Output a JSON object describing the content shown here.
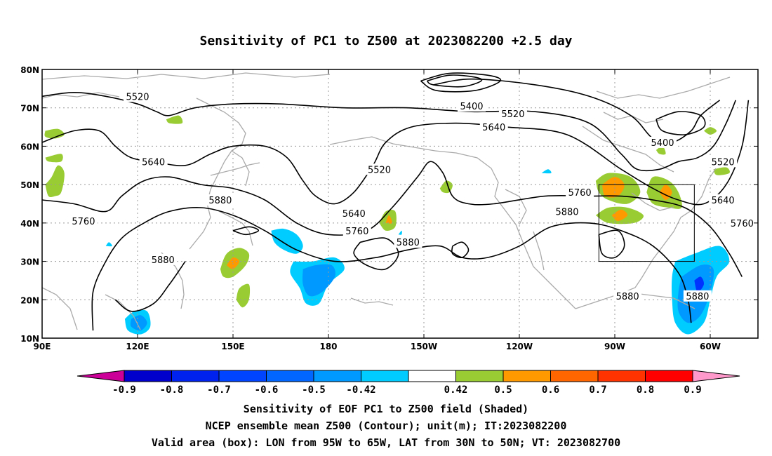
{
  "title": "Sensitivity of PC1 to Z500 at 2023082200 +2.5 day",
  "lat_ticks": [
    {
      "v": 80,
      "label": "80N"
    },
    {
      "v": 70,
      "label": "70N"
    },
    {
      "v": 60,
      "label": "60N"
    },
    {
      "v": 50,
      "label": "50N"
    },
    {
      "v": 40,
      "label": "40N"
    },
    {
      "v": 30,
      "label": "30N"
    },
    {
      "v": 20,
      "label": "20N"
    },
    {
      "v": 10,
      "label": "10N"
    }
  ],
  "lon_ticks": [
    {
      "v": 90,
      "label": "90E"
    },
    {
      "v": 120,
      "label": "120E"
    },
    {
      "v": 150,
      "label": "150E"
    },
    {
      "v": 180,
      "label": "180"
    },
    {
      "v": 210,
      "label": "150W"
    },
    {
      "v": 240,
      "label": "120W"
    },
    {
      "v": 270,
      "label": "90W"
    },
    {
      "v": 300,
      "label": "60W"
    }
  ],
  "map_extent": {
    "lon_min": 90,
    "lon_max": 315,
    "lat_min": 10,
    "lat_max": 80
  },
  "grid": true,
  "contours": [
    {
      "label": "5400",
      "points": [
        [
          213,
          76
        ],
        [
          225,
          77.5
        ],
        [
          245,
          76
        ],
        [
          262,
          73
        ],
        [
          275,
          68
        ],
        [
          282,
          62
        ],
        [
          288,
          61
        ],
        [
          294,
          64
        ],
        [
          297,
          68
        ],
        [
          303,
          72
        ]
      ]
    },
    {
      "label": "5520",
      "points": [
        [
          90,
          73
        ],
        [
          100,
          74
        ],
        [
          110,
          73
        ],
        [
          120,
          71
        ],
        [
          126,
          69
        ],
        [
          130,
          68
        ],
        [
          138,
          70
        ],
        [
          150,
          71
        ],
        [
          165,
          71
        ],
        [
          185,
          70
        ],
        [
          205,
          70
        ],
        [
          225,
          69
        ],
        [
          245,
          69
        ],
        [
          262,
          66
        ],
        [
          272,
          58
        ],
        [
          277,
          54
        ],
        [
          284,
          54
        ],
        [
          290,
          56
        ],
        [
          296,
          57
        ],
        [
          301,
          60
        ],
        [
          305,
          66
        ],
        [
          308,
          72
        ]
      ]
    },
    {
      "label": "5640",
      "points": [
        [
          90,
          61
        ],
        [
          100,
          64
        ],
        [
          108,
          64
        ],
        [
          113,
          60
        ],
        [
          118,
          57
        ],
        [
          125,
          56
        ],
        [
          135,
          55
        ],
        [
          143,
          58
        ],
        [
          150,
          60
        ],
        [
          160,
          60
        ],
        [
          167,
          57
        ],
        [
          172,
          51
        ],
        [
          176,
          47
        ],
        [
          182,
          45
        ],
        [
          188,
          48
        ],
        [
          194,
          55
        ],
        [
          198,
          61
        ],
        [
          206,
          65
        ],
        [
          220,
          66
        ],
        [
          236,
          65
        ],
        [
          255,
          63
        ],
        [
          272,
          54
        ],
        [
          282,
          49
        ],
        [
          290,
          46
        ],
        [
          298,
          45
        ],
        [
          305,
          50
        ],
        [
          310,
          60
        ],
        [
          312,
          72
        ]
      ]
    },
    {
      "label": "5760",
      "points": [
        [
          90,
          46
        ],
        [
          100,
          45
        ],
        [
          110,
          43
        ],
        [
          115,
          47
        ],
        [
          122,
          51
        ],
        [
          130,
          52
        ],
        [
          140,
          50
        ],
        [
          150,
          49
        ],
        [
          160,
          46
        ],
        [
          170,
          40
        ],
        [
          180,
          37
        ],
        [
          192,
          38
        ],
        [
          200,
          44
        ],
        [
          208,
          52
        ],
        [
          212,
          56
        ],
        [
          216,
          53
        ],
        [
          219,
          47
        ],
        [
          224,
          45
        ],
        [
          232,
          45
        ],
        [
          248,
          47
        ],
        [
          262,
          47
        ],
        [
          272,
          47
        ],
        [
          282,
          46
        ],
        [
          292,
          44
        ],
        [
          300,
          39
        ],
        [
          306,
          32
        ],
        [
          310,
          26
        ]
      ]
    },
    {
      "label": "5880",
      "points": [
        [
          106,
          12
        ],
        [
          106,
          22
        ],
        [
          110,
          30
        ],
        [
          115,
          36
        ],
        [
          122,
          40
        ],
        [
          130,
          43
        ],
        [
          140,
          44
        ],
        [
          150,
          42
        ],
        [
          160,
          38
        ],
        [
          170,
          33
        ],
        [
          182,
          30
        ],
        [
          195,
          31
        ],
        [
          205,
          33
        ],
        [
          215,
          34
        ],
        [
          222,
          31
        ],
        [
          230,
          31
        ],
        [
          240,
          34
        ],
        [
          250,
          39
        ],
        [
          262,
          40
        ],
        [
          272,
          38
        ],
        [
          282,
          34
        ],
        [
          290,
          27
        ],
        [
          293,
          20
        ],
        [
          294,
          14
        ]
      ]
    },
    {
      "label": "5880",
      "points": [
        [
          190,
          35
        ],
        [
          198,
          36
        ],
        [
          202,
          32
        ],
        [
          198,
          28
        ],
        [
          192,
          29
        ],
        [
          188,
          32
        ],
        [
          190,
          35
        ]
      ]
    },
    {
      "label": "5880",
      "points": [
        [
          135,
          30
        ],
        [
          130,
          24
        ],
        [
          125,
          19
        ],
        [
          118,
          17
        ],
        [
          113,
          20
        ]
      ]
    }
  ],
  "contour_labels": [
    {
      "text": "5520",
      "lon": 120,
      "lat": 73
    },
    {
      "text": "5400",
      "lon": 225,
      "lat": 70.5
    },
    {
      "text": "5520",
      "lon": 238,
      "lat": 68.5
    },
    {
      "text": "5640",
      "lon": 232,
      "lat": 65
    },
    {
      "text": "5400",
      "lon": 285,
      "lat": 61
    },
    {
      "text": "5520",
      "lon": 304,
      "lat": 56
    },
    {
      "text": "5640",
      "lon": 125,
      "lat": 56
    },
    {
      "text": "5520",
      "lon": 196,
      "lat": 54
    },
    {
      "text": "5760",
      "lon": 259,
      "lat": 48
    },
    {
      "text": "5880",
      "lon": 255,
      "lat": 43
    },
    {
      "text": "5640",
      "lon": 304,
      "lat": 46
    },
    {
      "text": "5880",
      "lon": 146,
      "lat": 46
    },
    {
      "text": "5640",
      "lon": 188,
      "lat": 42.5
    },
    {
      "text": "5760",
      "lon": 310,
      "lat": 40
    },
    {
      "text": "5760",
      "lon": 103,
      "lat": 40.5
    },
    {
      "text": "5760",
      "lon": 189,
      "lat": 38
    },
    {
      "text": "5880",
      "lon": 205,
      "lat": 35
    },
    {
      "text": "5880",
      "lon": 128,
      "lat": 30.5
    },
    {
      "text": "5880",
      "lon": 274,
      "lat": 21
    },
    {
      "text": "5880",
      "lon": 296,
      "lat": 21
    }
  ],
  "shaded_regions": [
    {
      "color": "#99cc33",
      "pts": [
        [
          91,
          50
        ],
        [
          93,
          52
        ],
        [
          95,
          55
        ],
        [
          97,
          53
        ],
        [
          96,
          48
        ],
        [
          94,
          47
        ],
        [
          92,
          47
        ]
      ]
    },
    {
      "color": "#99cc33",
      "pts": [
        [
          91,
          64
        ],
        [
          95,
          64.5
        ],
        [
          97,
          63
        ],
        [
          94,
          62
        ],
        [
          91,
          62.5
        ]
      ]
    },
    {
      "color": "#99cc33",
      "pts": [
        [
          91,
          57
        ],
        [
          96,
          58
        ],
        [
          96,
          56
        ],
        [
          92,
          56
        ]
      ]
    },
    {
      "color": "#99cc33",
      "pts": [
        [
          129,
          67
        ],
        [
          133,
          68
        ],
        [
          134,
          66
        ],
        [
          130,
          66
        ]
      ]
    },
    {
      "color": "#99cc33",
      "pts": [
        [
          146,
          28
        ],
        [
          148,
          32
        ],
        [
          152,
          33.5
        ],
        [
          155,
          32
        ],
        [
          154,
          29
        ],
        [
          150,
          26
        ],
        [
          147,
          26
        ]
      ]
    },
    {
      "color": "#99cc33",
      "pts": [
        [
          151,
          20
        ],
        [
          152,
          23
        ],
        [
          155,
          24
        ],
        [
          155,
          20
        ],
        [
          153,
          18
        ]
      ]
    },
    {
      "color": "#99cc33",
      "pts": [
        [
          196,
          40
        ],
        [
          198,
          43
        ],
        [
          201,
          43
        ],
        [
          201,
          39
        ],
        [
          198,
          38
        ]
      ]
    },
    {
      "color": "#99cc33",
      "pts": [
        [
          215,
          49
        ],
        [
          217,
          51
        ],
        [
          219,
          50
        ],
        [
          218,
          48
        ],
        [
          216,
          48
        ]
      ]
    },
    {
      "color": "#99cc33",
      "pts": [
        [
          264,
          51
        ],
        [
          268,
          53
        ],
        [
          275,
          52
        ],
        [
          278,
          48
        ],
        [
          274,
          45
        ],
        [
          268,
          46
        ],
        [
          265,
          48
        ]
      ]
    },
    {
      "color": "#99cc33",
      "pts": [
        [
          264,
          42
        ],
        [
          268,
          44
        ],
        [
          274,
          44
        ],
        [
          279,
          42
        ],
        [
          276,
          40
        ],
        [
          268,
          40
        ]
      ]
    },
    {
      "color": "#99cc33",
      "pts": [
        [
          280,
          48
        ],
        [
          282,
          52
        ],
        [
          287,
          51
        ],
        [
          290,
          48
        ],
        [
          291,
          44
        ],
        [
          287,
          44
        ],
        [
          282,
          45
        ]
      ]
    },
    {
      "color": "#99cc33",
      "pts": [
        [
          301,
          54
        ],
        [
          305,
          54.5
        ],
        [
          306,
          53
        ],
        [
          302,
          52.5
        ]
      ]
    },
    {
      "color": "#99cc33",
      "pts": [
        [
          298,
          64
        ],
        [
          300,
          65
        ],
        [
          302,
          64
        ],
        [
          300,
          63
        ]
      ]
    },
    {
      "color": "#99cc33",
      "pts": [
        [
          283,
          59
        ],
        [
          285,
          60
        ],
        [
          286,
          58
        ],
        [
          284,
          58
        ]
      ]
    },
    {
      "color": "#ff9900",
      "pts": [
        [
          266,
          50
        ],
        [
          270,
          52
        ],
        [
          273,
          50
        ],
        [
          271,
          47
        ],
        [
          267,
          47
        ]
      ]
    },
    {
      "color": "#ff9900",
      "pts": [
        [
          269,
          42
        ],
        [
          272,
          43.5
        ],
        [
          274,
          42
        ],
        [
          271,
          40.5
        ]
      ]
    },
    {
      "color": "#ff9900",
      "pts": [
        [
          284,
          48
        ],
        [
          286,
          50
        ],
        [
          288,
          48
        ],
        [
          286,
          46
        ]
      ]
    },
    {
      "color": "#ff9900",
      "pts": [
        [
          148,
          29
        ],
        [
          150,
          31
        ],
        [
          152,
          30
        ],
        [
          150,
          28
        ]
      ]
    },
    {
      "color": "#ff9900",
      "pts": [
        [
          198,
          40
        ],
        [
          199,
          42
        ],
        [
          200,
          40
        ]
      ]
    },
    {
      "color": "#00ccff",
      "pts": [
        [
          162,
          38
        ],
        [
          166,
          38.5
        ],
        [
          170,
          37
        ],
        [
          172,
          34
        ],
        [
          170,
          32
        ],
        [
          166,
          33
        ],
        [
          163,
          35
        ]
      ]
    },
    {
      "color": "#00ccff",
      "pts": [
        [
          169,
          30
        ],
        [
          175,
          30
        ],
        [
          182,
          31
        ],
        [
          185,
          28
        ],
        [
          180,
          24
        ],
        [
          177,
          19
        ],
        [
          173,
          19
        ],
        [
          171,
          23
        ],
        [
          168,
          27
        ]
      ]
    },
    {
      "color": "#00ccff",
      "pts": [
        [
          116,
          15
        ],
        [
          119,
          17
        ],
        [
          123,
          17
        ],
        [
          124,
          13
        ],
        [
          121,
          11
        ],
        [
          117,
          12
        ]
      ]
    },
    {
      "color": "#00ccff",
      "pts": [
        [
          289,
          30
        ],
        [
          295,
          32
        ],
        [
          303,
          34
        ],
        [
          306,
          30
        ],
        [
          302,
          26
        ],
        [
          300,
          20
        ],
        [
          298,
          14
        ],
        [
          293,
          11
        ],
        [
          289,
          14
        ],
        [
          288,
          20
        ],
        [
          288,
          26
        ]
      ]
    },
    {
      "color": "#00ccff",
      "pts": [
        [
          247,
          53
        ],
        [
          249,
          54
        ],
        [
          250,
          53
        ]
      ]
    },
    {
      "color": "#00ccff",
      "pts": [
        [
          110,
          34
        ],
        [
          111,
          35
        ],
        [
          112,
          34
        ]
      ]
    },
    {
      "color": "#00ccff",
      "pts": [
        [
          202,
          37
        ],
        [
          203,
          38
        ],
        [
          203,
          37
        ]
      ]
    },
    {
      "color": "#0099ff",
      "pts": [
        [
          172,
          28
        ],
        [
          176,
          29
        ],
        [
          181,
          29
        ],
        [
          182,
          26
        ],
        [
          178,
          22
        ],
        [
          174,
          21
        ],
        [
          172,
          24
        ]
      ]
    },
    {
      "color": "#0099ff",
      "pts": [
        [
          118,
          15
        ],
        [
          121,
          16
        ],
        [
          123,
          14
        ],
        [
          121,
          12
        ],
        [
          118,
          13
        ]
      ]
    },
    {
      "color": "#0099ff",
      "pts": [
        [
          291,
          26
        ],
        [
          297,
          29
        ],
        [
          301,
          28
        ],
        [
          300,
          22
        ],
        [
          297,
          16
        ],
        [
          293,
          14
        ],
        [
          290,
          17
        ],
        [
          290,
          22
        ]
      ]
    },
    {
      "color": "#0033ff",
      "pts": [
        [
          295,
          25
        ],
        [
          297,
          26
        ],
        [
          298,
          24
        ],
        [
          296,
          22
        ]
      ]
    }
  ],
  "box": {
    "lon1": 265,
    "lon2": 295,
    "lat1": 30,
    "lat2": 50
  },
  "colorbar": {
    "colors": [
      "#0000cc",
      "#0022ee",
      "#0044ff",
      "#0066ff",
      "#0099ff",
      "#00ccff",
      "#ffffff",
      "#99cc33",
      "#ff9900",
      "#ff6600",
      "#ff3300",
      "#ff0000"
    ],
    "low_color": "#cc0099",
    "high_color": "#ff99cc",
    "labels": [
      "-0.9",
      "-0.8",
      "-0.7",
      "-0.6",
      "-0.5",
      "-0.42",
      "0.42",
      "0.5",
      "0.6",
      "0.7",
      "0.8",
      "0.9"
    ]
  },
  "footer": {
    "line1": "Sensitivity of EOF PC1 to Z500 field (Shaded)",
    "line2": "NCEP ensemble mean Z500 (Contour); unit(m); IT:2023082200",
    "line3": "Valid area (box): LON from 95W to 65W, LAT from 30N to 50N; VT: 2023082700"
  }
}
